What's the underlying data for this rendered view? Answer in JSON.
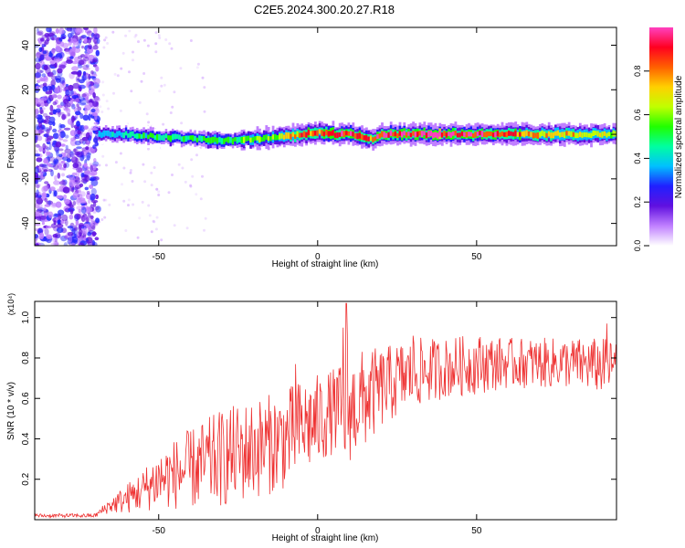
{
  "title": "C2E5.2024.300.20.27.R18",
  "chart_data": [
    {
      "type": "heatmap",
      "title": "C2E5.2024.300.20.27.R18",
      "xlabel": "Height of straight line (km)",
      "ylabel": "Frequency (Hz)",
      "xlim": [
        -89,
        94
      ],
      "ylim": [
        -50,
        48
      ],
      "x_ticks": [
        -50,
        0,
        50
      ],
      "y_ticks": [
        -40,
        -20,
        0,
        20,
        40
      ],
      "colorbar": {
        "label": "Normalized spectral amplitude",
        "range": [
          0,
          1
        ],
        "ticks": [
          "0.0",
          "0.2",
          "0.4",
          "0.6",
          "0.8"
        ],
        "colors": [
          "#ffffff",
          "#c080ff",
          "#6010e0",
          "#2020ff",
          "#00c0ff",
          "#00ffa0",
          "#20ff00",
          "#c0ff00",
          "#ffd000",
          "#ff6000",
          "#ff0020",
          "#ff40c0"
        ]
      },
      "band": {
        "center_frequency_points": [
          [
            -69,
            0
          ],
          [
            -60,
            0
          ],
          [
            -50,
            -1
          ],
          [
            -40,
            -2
          ],
          [
            -30,
            -3
          ],
          [
            -20,
            -2
          ],
          [
            -10,
            -1
          ],
          [
            0,
            1
          ],
          [
            5,
            0
          ],
          [
            10,
            0
          ],
          [
            17,
            -2
          ],
          [
            20,
            0
          ],
          [
            30,
            0
          ],
          [
            50,
            0
          ],
          [
            94,
            0
          ]
        ],
        "amplitude_points": [
          [
            -69,
            0.35
          ],
          [
            -60,
            0.45
          ],
          [
            -40,
            0.5
          ],
          [
            -20,
            0.55
          ],
          [
            0,
            0.85
          ],
          [
            10,
            0.9
          ],
          [
            20,
            0.9
          ],
          [
            40,
            0.95
          ],
          [
            60,
            0.85
          ],
          [
            94,
            0.6
          ]
        ]
      },
      "noise_region": {
        "x_range": [
          -89,
          -69
        ],
        "y_range": [
          -50,
          48
        ]
      }
    },
    {
      "type": "line",
      "xlabel": "Height of straight line (km)",
      "ylabel": "SNR (10 * v/v)",
      "y_multiplier": "(x10⁴)",
      "xlim": [
        -89,
        94
      ],
      "ylim": [
        0,
        1.08
      ],
      "x_ticks": [
        -50,
        0,
        50
      ],
      "y_ticks": [
        0.2,
        0.4,
        0.6,
        0.8,
        1.0
      ],
      "y_tick_labels": [
        "0.2",
        "0.4",
        "0.6",
        "0.8",
        "1.0"
      ],
      "color": "#ee3333",
      "envelope": {
        "x": [
          -89,
          -70,
          -66,
          -60,
          -55,
          -50,
          -40,
          -30,
          -20,
          -10,
          -5,
          0,
          5,
          8,
          9,
          10,
          15,
          20,
          25,
          30,
          40,
          50,
          60,
          70,
          80,
          90,
          94
        ],
        "lower": [
          0.01,
          0.01,
          0.03,
          0.03,
          0.04,
          0.05,
          0.05,
          0.06,
          0.1,
          0.15,
          0.22,
          0.25,
          0.33,
          0.3,
          0.12,
          0.28,
          0.35,
          0.45,
          0.5,
          0.55,
          0.6,
          0.62,
          0.65,
          0.65,
          0.65,
          0.62,
          0.65
        ],
        "upper": [
          0.03,
          0.03,
          0.1,
          0.18,
          0.25,
          0.35,
          0.45,
          0.55,
          0.6,
          0.65,
          0.7,
          0.72,
          0.75,
          0.78,
          1.07,
          0.8,
          0.85,
          0.85,
          0.88,
          0.9,
          0.9,
          0.92,
          0.9,
          0.9,
          0.9,
          0.9,
          0.88
        ]
      },
      "spikes": [
        [
          9,
          1.07
        ],
        [
          -7,
          0.77
        ],
        [
          91,
          0.97
        ],
        [
          8,
          0.95
        ],
        [
          30,
          0.91
        ]
      ]
    }
  ]
}
